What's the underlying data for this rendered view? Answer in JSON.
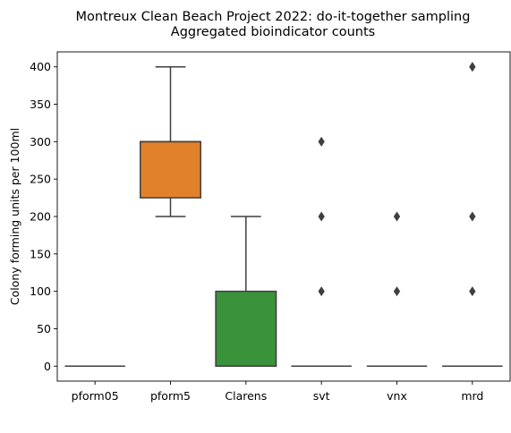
{
  "chart_data": {
    "type": "box",
    "title": [
      "Montreux Clean Beach Project 2022: do-it-together sampling",
      "Aggregated bioindicator counts"
    ],
    "xlabel": "",
    "ylabel": "Colony forming units per 100ml",
    "ylim": [
      -20,
      420
    ],
    "yticks": [
      0,
      50,
      100,
      150,
      200,
      250,
      300,
      350,
      400
    ],
    "grid": false,
    "categories": [
      "pform05",
      "pform5",
      "Clarens",
      "svt",
      "vnx",
      "mrd"
    ],
    "colors": [
      "#3274a1",
      "#e1812c",
      "#3a923a",
      "#c03d3e",
      "#9372b2",
      "#845b53"
    ],
    "boxes": [
      {
        "category": "pform05",
        "whislo": 0,
        "q1": 0,
        "median": 0,
        "q3": 0,
        "whishi": 0,
        "fliers": []
      },
      {
        "category": "pform5",
        "whislo": 200,
        "q1": 225,
        "median": 300,
        "q3": 300,
        "whishi": 400,
        "fliers": []
      },
      {
        "category": "Clarens",
        "whislo": 0,
        "q1": 0,
        "median": 0,
        "q3": 100,
        "whishi": 200,
        "fliers": []
      },
      {
        "category": "svt",
        "whislo": 0,
        "q1": 0,
        "median": 0,
        "q3": 0,
        "whishi": 0,
        "fliers": [
          100,
          200,
          300
        ]
      },
      {
        "category": "vnx",
        "whislo": 0,
        "q1": 0,
        "median": 0,
        "q3": 0,
        "whishi": 0,
        "fliers": [
          100,
          200
        ]
      },
      {
        "category": "mrd",
        "whislo": 0,
        "q1": 0,
        "median": 0,
        "q3": 0,
        "whishi": 0,
        "fliers": [
          100,
          200,
          400
        ]
      }
    ]
  }
}
